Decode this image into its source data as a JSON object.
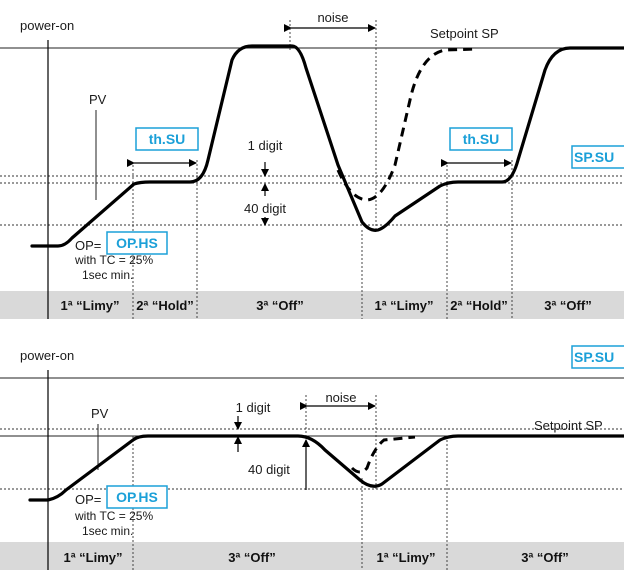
{
  "top": {
    "power_on": "power-on",
    "noise": "noise",
    "setpoint": "Setpoint SP",
    "pv": "PV",
    "th_su_1": "th.SU",
    "th_su_2": "th.SU",
    "sp_su": "SP.SU",
    "one_digit": "1 digit",
    "forty_digit": "40 digit",
    "op_prefix": "OP=",
    "op_hs": "OP.HS",
    "tc_note": "with TC = 25%",
    "min_note": "1sec min.",
    "phases": [
      "1ª “Limy”",
      "2ª “Hold”",
      "3ª “Off”",
      "1ª “Limy”",
      "2ª “Hold”",
      "3ª “Off”"
    ]
  },
  "bottom": {
    "power_on": "power-on",
    "sp_su": "SP.SU",
    "pv": "PV",
    "one_digit": "1 digit",
    "noise": "noise",
    "setpoint": "Setpoint SP",
    "forty_digit": "40 digit",
    "op_prefix": "OP=",
    "op_hs": "OP.HS",
    "tc_note": "with TC = 25%",
    "min_note": "1sec min.",
    "phases": [
      "1ª “Limy”",
      "3ª “Off”",
      "1ª “Limy”",
      "3ª “Off”"
    ]
  }
}
